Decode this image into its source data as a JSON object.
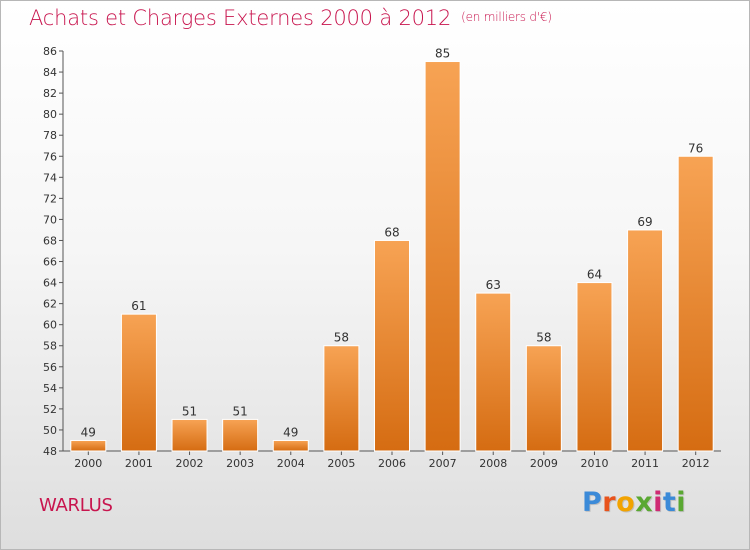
{
  "header": {
    "title": "Achats et Charges Externes 2000 à 2012",
    "unit": "(en milliers d'€)"
  },
  "footer": {
    "commune": "WARLUS",
    "logo": {
      "letters": [
        "P",
        "r",
        "o",
        "x",
        "i",
        "t",
        "i"
      ],
      "colors": [
        "#3b8ad8",
        "#e8531c",
        "#f2a300",
        "#5aa832",
        "#cf2a73",
        "#3b8ad8",
        "#5aa832"
      ]
    }
  },
  "chart_data": {
    "type": "bar",
    "title": "Achats et Charges Externes 2000 à 2012",
    "subtitle": "(en milliers d'€)",
    "xlabel": "",
    "ylabel": "",
    "categories": [
      "2000",
      "2001",
      "2002",
      "2003",
      "2004",
      "2005",
      "2006",
      "2007",
      "2008",
      "2009",
      "2010",
      "2011",
      "2012"
    ],
    "values": [
      49,
      61,
      51,
      51,
      49,
      58,
      68,
      85,
      63,
      58,
      64,
      69,
      76
    ],
    "ylim": [
      48,
      86
    ],
    "yticks": [
      48,
      50,
      52,
      54,
      56,
      58,
      60,
      62,
      64,
      66,
      68,
      70,
      72,
      74,
      76,
      78,
      80,
      82,
      84,
      86
    ],
    "grid": false,
    "legend": "none",
    "colors": {
      "bar_light": "#f7a354",
      "bar_dark": "#d56c12",
      "axis": "#555555"
    }
  }
}
